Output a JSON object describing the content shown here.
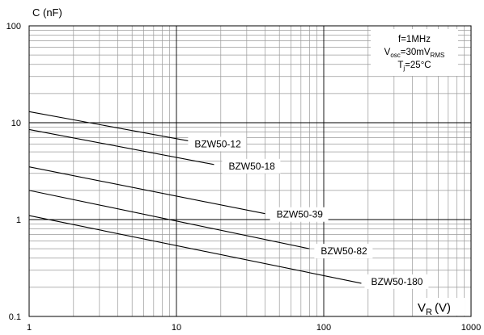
{
  "chart_data": {
    "type": "line",
    "ylabel": "C (nF)",
    "xlabel_main": "V",
    "xlabel_sub": "R",
    "xlabel_unit": "(V)",
    "x_scale": "log",
    "y_scale": "log",
    "xlim": [
      1,
      1000
    ],
    "ylim": [
      0.1,
      100
    ],
    "x_ticks": [
      "1",
      "10",
      "100",
      "1000"
    ],
    "y_ticks": [
      "100",
      "10",
      "1",
      "0.1"
    ],
    "grid": true,
    "conditions": {
      "line1": "f=1MHz",
      "line2_main": "V",
      "line2_sub1": "osc",
      "line2_mid": "=30mV",
      "line2_sub2": "RMS",
      "line3_main": "T",
      "line3_sub": "j",
      "line3_rest": "=25°C"
    },
    "series": [
      {
        "name": "BZW50-12",
        "x": [
          1,
          12
        ],
        "y": [
          13,
          6.5
        ]
      },
      {
        "name": "BZW50-18",
        "x": [
          1,
          18
        ],
        "y": [
          8.5,
          3.7
        ]
      },
      {
        "name": "BZW50-39",
        "x": [
          1,
          40
        ],
        "y": [
          3.5,
          1.15
        ]
      },
      {
        "name": "BZW50-82",
        "x": [
          1,
          80
        ],
        "y": [
          2.0,
          0.5
        ]
      },
      {
        "name": "BZW50-180",
        "x": [
          1,
          180
        ],
        "y": [
          1.1,
          0.22
        ]
      }
    ]
  }
}
